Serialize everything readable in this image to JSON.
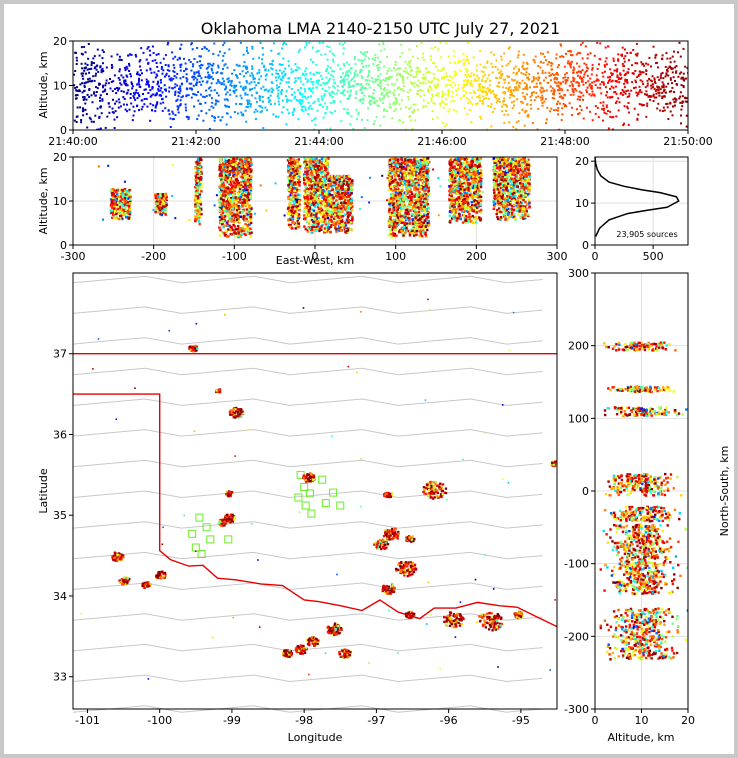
{
  "title": "Oklahoma LMA 2140-2150 UTC July 27, 2021",
  "colors": {
    "state_border": "#e60000",
    "county_lines": "#c8c8c8",
    "sensor_markers": "#66ee22",
    "colormap": "jet"
  },
  "chart_data": [
    {
      "name": "time_altitude",
      "type": "scatter",
      "xlabel": "",
      "ylabel": "Altitude, km",
      "xticks": [
        "21:40:00",
        "21:42:00",
        "21:44:00",
        "21:46:00",
        "21:48:00",
        "21:50:00"
      ],
      "xlim_minutes": [
        0,
        10
      ],
      "ylim": [
        0,
        20
      ],
      "yticks": [
        0,
        10,
        20
      ],
      "color_by": "time",
      "altitude_band_km": [
        3,
        18
      ]
    },
    {
      "name": "east_west_altitude",
      "type": "scatter",
      "xlabel": "East-West, km",
      "ylabel": "Altitude, km",
      "xlim": [
        -300,
        300
      ],
      "xticks": [
        -300,
        -200,
        -100,
        0,
        100,
        200,
        300
      ],
      "ylim": [
        0,
        20
      ],
      "yticks": [
        0,
        10,
        20
      ],
      "grid": true,
      "color_by": "time",
      "clusters": [
        {
          "x": [
            -255,
            -230
          ],
          "alt": [
            6,
            13
          ]
        },
        {
          "x": [
            -200,
            -185
          ],
          "alt": [
            7,
            12
          ]
        },
        {
          "x": [
            -150,
            -142
          ],
          "alt": [
            5,
            20
          ]
        },
        {
          "x": [
            -120,
            -80
          ],
          "alt": [
            2,
            20
          ]
        },
        {
          "x": [
            -35,
            -20
          ],
          "alt": [
            4,
            20
          ]
        },
        {
          "x": [
            -15,
            15
          ],
          "alt": [
            3,
            20
          ]
        },
        {
          "x": [
            15,
            45
          ],
          "alt": [
            3,
            16
          ]
        },
        {
          "x": [
            90,
            140
          ],
          "alt": [
            2,
            20
          ]
        },
        {
          "x": [
            165,
            205
          ],
          "alt": [
            5,
            20
          ]
        },
        {
          "x": [
            220,
            265
          ],
          "alt": [
            6,
            20
          ]
        }
      ]
    },
    {
      "name": "altitude_histogram",
      "type": "line",
      "xlim": [
        0,
        800
      ],
      "xticks": [
        0,
        500
      ],
      "ylim": [
        0,
        21
      ],
      "yticks": [
        0,
        10,
        20
      ],
      "grid": true,
      "annotation": "23,905 sources",
      "x": [
        5,
        40,
        120,
        280,
        450,
        620,
        720,
        700,
        560,
        400,
        250,
        120,
        50,
        20,
        5,
        0
      ],
      "y": [
        2,
        4,
        6,
        7.5,
        8.3,
        9,
        10.5,
        11.5,
        12.5,
        13.2,
        14,
        15,
        16.5,
        18,
        19.5,
        21
      ]
    },
    {
      "name": "plan_view_map",
      "type": "scatter",
      "xlabel": "Longitude",
      "ylabel": "Latitude",
      "xlim": [
        -101.2,
        -94.5
      ],
      "xticks": [
        -101,
        -100,
        -99,
        -98,
        -97,
        -96,
        -95
      ],
      "ylim": [
        32.6,
        38.0
      ],
      "yticks": [
        33,
        34,
        35,
        36,
        37
      ],
      "color_by": "time",
      "storms": [
        {
          "lon": -99.55,
          "lat": 37.08,
          "r": 0.05
        },
        {
          "lon": -99.2,
          "lat": 36.55,
          "r": 0.03
        },
        {
          "lon": -98.95,
          "lat": 36.28,
          "r": 0.08
        },
        {
          "lon": -99.05,
          "lat": 35.28,
          "r": 0.04
        },
        {
          "lon": -99.05,
          "lat": 34.98,
          "r": 0.07
        },
        {
          "lon": -99.15,
          "lat": 34.92,
          "r": 0.05
        },
        {
          "lon": -97.95,
          "lat": 35.48,
          "r": 0.07
        },
        {
          "lon": -96.2,
          "lat": 35.33,
          "r": 0.14
        },
        {
          "lon": -96.85,
          "lat": 35.27,
          "r": 0.05
        },
        {
          "lon": -96.8,
          "lat": 34.78,
          "r": 0.1
        },
        {
          "lon": -96.95,
          "lat": 34.65,
          "r": 0.08
        },
        {
          "lon": -96.55,
          "lat": 34.72,
          "r": 0.05
        },
        {
          "lon": -96.6,
          "lat": 34.35,
          "r": 0.12
        },
        {
          "lon": -96.85,
          "lat": 34.1,
          "r": 0.08
        },
        {
          "lon": -96.55,
          "lat": 33.78,
          "r": 0.05
        },
        {
          "lon": -97.6,
          "lat": 33.6,
          "r": 0.09
        },
        {
          "lon": -97.9,
          "lat": 33.45,
          "r": 0.07
        },
        {
          "lon": -98.05,
          "lat": 33.35,
          "r": 0.07
        },
        {
          "lon": -98.25,
          "lat": 33.3,
          "r": 0.06
        },
        {
          "lon": -97.45,
          "lat": 33.3,
          "r": 0.07
        },
        {
          "lon": -95.95,
          "lat": 33.72,
          "r": 0.12
        },
        {
          "lon": -95.45,
          "lat": 33.7,
          "r": 0.15
        },
        {
          "lon": -95.05,
          "lat": 33.78,
          "r": 0.05
        },
        {
          "lon": -100.6,
          "lat": 34.5,
          "r": 0.07
        },
        {
          "lon": -100.5,
          "lat": 34.2,
          "r": 0.06
        },
        {
          "lon": -100.0,
          "lat": 34.27,
          "r": 0.06
        },
        {
          "lon": -100.2,
          "lat": 34.15,
          "r": 0.05
        },
        {
          "lon": -94.55,
          "lat": 35.65,
          "r": 0.04
        }
      ],
      "sensors": [
        {
          "lon": -98.05,
          "lat": 35.5
        },
        {
          "lon": -97.75,
          "lat": 35.44
        },
        {
          "lon": -98.0,
          "lat": 35.35
        },
        {
          "lon": -97.92,
          "lat": 35.27
        },
        {
          "lon": -98.08,
          "lat": 35.22
        },
        {
          "lon": -97.6,
          "lat": 35.28
        },
        {
          "lon": -97.7,
          "lat": 35.15
        },
        {
          "lon": -97.5,
          "lat": 35.12
        },
        {
          "lon": -97.98,
          "lat": 35.12
        },
        {
          "lon": -97.9,
          "lat": 35.02
        },
        {
          "lon": -99.45,
          "lat": 34.97
        },
        {
          "lon": -99.35,
          "lat": 34.85
        },
        {
          "lon": -99.55,
          "lat": 34.77
        },
        {
          "lon": -99.3,
          "lat": 34.7
        },
        {
          "lon": -99.05,
          "lat": 34.7
        },
        {
          "lon": -99.5,
          "lat": 34.6
        },
        {
          "lon": -99.42,
          "lat": 34.52
        }
      ]
    },
    {
      "name": "altitude_north_south",
      "type": "scatter",
      "xlabel": "Altitude, km",
      "ylabel": "North-South, km",
      "xlim": [
        0,
        20
      ],
      "xticks": [
        0,
        10,
        20
      ],
      "ylim": [
        -300,
        300
      ],
      "yticks": [
        -300,
        -200,
        -100,
        0,
        100,
        200,
        300
      ],
      "grid": true,
      "color_by": "time",
      "bands_y": [
        [
          195,
          206
        ],
        [
          138,
          145
        ],
        [
          105,
          117
        ],
        [
          -5,
          25
        ],
        [
          -40,
          -20
        ],
        [
          -90,
          -45
        ],
        [
          -140,
          -90
        ],
        [
          -230,
          -160
        ]
      ]
    }
  ]
}
